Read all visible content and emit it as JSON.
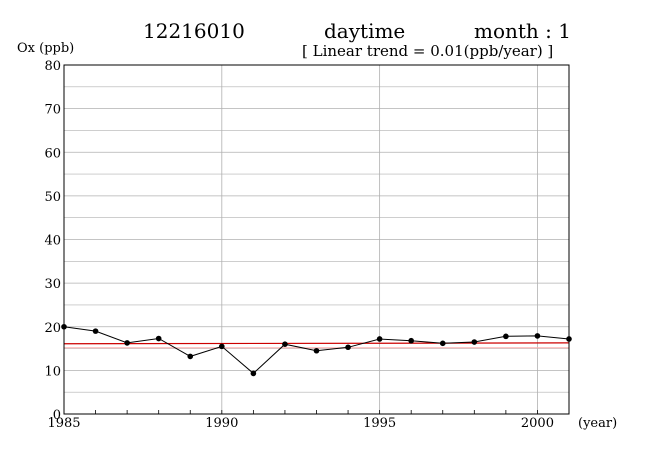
{
  "header": {
    "station": "12216010",
    "period": "daytime",
    "month_label": "month : 1",
    "trend_label": "[ Linear trend = 0.01(ppb/year) ]"
  },
  "chart_data": {
    "type": "line",
    "title": "",
    "ylabel": "Ox (ppb)",
    "xlabel": "(year)",
    "xlim": [
      1985,
      2001
    ],
    "ylim": [
      0,
      80
    ],
    "x_ticks": [
      1985,
      1990,
      1995,
      2000
    ],
    "y_ticks": [
      0,
      10,
      20,
      30,
      40,
      50,
      60,
      70,
      80
    ],
    "grid": true,
    "x": [
      1985,
      1986,
      1987,
      1988,
      1989,
      1990,
      1991,
      1992,
      1993,
      1994,
      1995,
      1996,
      1997,
      1998,
      1999,
      2000,
      2001
    ],
    "series": [
      {
        "name": "",
        "values": [
          20.0,
          19.0,
          16.3,
          17.3,
          13.2,
          15.5,
          9.3,
          16.0,
          14.5,
          15.3,
          17.2,
          16.8,
          16.2,
          16.5,
          17.8,
          17.9,
          17.2
        ]
      }
    ],
    "trend_line": {
      "y_start": 16.1,
      "y_end": 16.3
    },
    "colors": {
      "series": "#000000",
      "trend": "#cc0000",
      "reference": "#ffb0b0",
      "grid": "#b0b0b0"
    }
  }
}
